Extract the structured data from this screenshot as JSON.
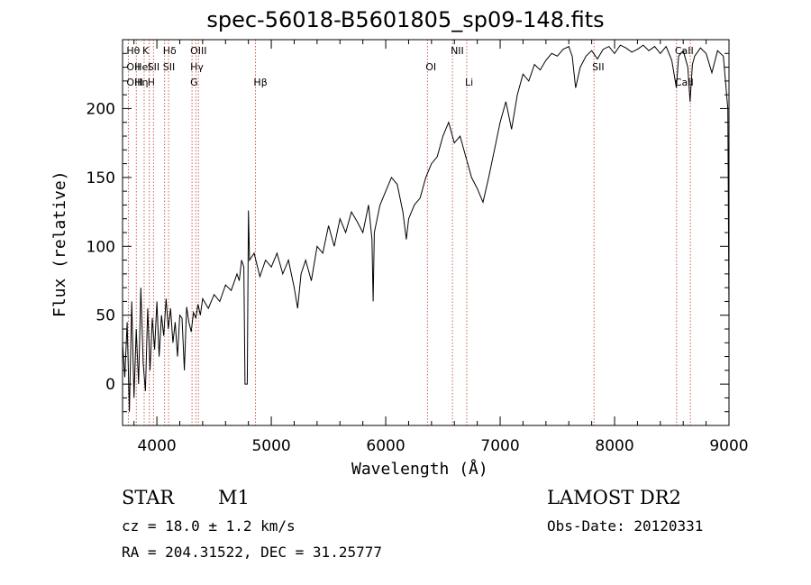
{
  "figure": {
    "title": "spec-56018-B5601805_sp09-148.fits",
    "object_class": "STAR",
    "subclass": "M1",
    "survey": "LAMOST DR2",
    "redshift_text": "cz = 18.0 ± 1.2 km/s",
    "obs_date": "Obs-Date: 20120331",
    "coords": "RA = 204.31522, DEC =  31.25777"
  },
  "chart_data": {
    "type": "line",
    "title": "spec-56018-B5601805_sp09-148.fits",
    "xlabel": "Wavelength (Å)",
    "ylabel": "Flux (relative)",
    "xlim": [
      3700,
      9000
    ],
    "ylim": [
      -30,
      250
    ],
    "grid": false,
    "xticks": [
      4000,
      5000,
      6000,
      7000,
      8000,
      9000
    ],
    "yticks": [
      0,
      50,
      100,
      150,
      200
    ],
    "series": [
      {
        "points": [
          [
            3700,
            30
          ],
          [
            3720,
            5
          ],
          [
            3740,
            45
          ],
          [
            3760,
            -20
          ],
          [
            3780,
            60
          ],
          [
            3800,
            -10
          ],
          [
            3820,
            40
          ],
          [
            3840,
            0
          ],
          [
            3860,
            70
          ],
          [
            3880,
            15
          ],
          [
            3900,
            -5
          ],
          [
            3920,
            55
          ],
          [
            3940,
            10
          ],
          [
            3960,
            48
          ],
          [
            3980,
            25
          ],
          [
            4000,
            60
          ],
          [
            4020,
            20
          ],
          [
            4040,
            50
          ],
          [
            4060,
            35
          ],
          [
            4080,
            62
          ],
          [
            4100,
            40
          ],
          [
            4120,
            55
          ],
          [
            4140,
            30
          ],
          [
            4160,
            45
          ],
          [
            4180,
            20
          ],
          [
            4200,
            50
          ],
          [
            4220,
            48
          ],
          [
            4240,
            10
          ],
          [
            4260,
            56
          ],
          [
            4280,
            45
          ],
          [
            4300,
            38
          ],
          [
            4320,
            52
          ],
          [
            4340,
            48
          ],
          [
            4360,
            58
          ],
          [
            4380,
            50
          ],
          [
            4400,
            62
          ],
          [
            4450,
            55
          ],
          [
            4500,
            65
          ],
          [
            4550,
            60
          ],
          [
            4600,
            72
          ],
          [
            4650,
            68
          ],
          [
            4700,
            80
          ],
          [
            4720,
            75
          ],
          [
            4740,
            90
          ],
          [
            4760,
            85
          ],
          [
            4770,
            0
          ],
          [
            4790,
            0
          ],
          [
            4800,
            126
          ],
          [
            4810,
            90
          ],
          [
            4850,
            95
          ],
          [
            4900,
            78
          ],
          [
            4950,
            90
          ],
          [
            5000,
            85
          ],
          [
            5050,
            95
          ],
          [
            5100,
            80
          ],
          [
            5150,
            90
          ],
          [
            5200,
            70
          ],
          [
            5230,
            55
          ],
          [
            5260,
            80
          ],
          [
            5300,
            90
          ],
          [
            5350,
            75
          ],
          [
            5400,
            100
          ],
          [
            5450,
            95
          ],
          [
            5500,
            115
          ],
          [
            5550,
            100
          ],
          [
            5600,
            120
          ],
          [
            5650,
            110
          ],
          [
            5700,
            125
          ],
          [
            5750,
            118
          ],
          [
            5800,
            110
          ],
          [
            5850,
            130
          ],
          [
            5880,
            105
          ],
          [
            5890,
            60
          ],
          [
            5900,
            110
          ],
          [
            5950,
            130
          ],
          [
            6000,
            140
          ],
          [
            6050,
            150
          ],
          [
            6100,
            145
          ],
          [
            6150,
            125
          ],
          [
            6180,
            105
          ],
          [
            6200,
            120
          ],
          [
            6250,
            130
          ],
          [
            6300,
            135
          ],
          [
            6350,
            150
          ],
          [
            6400,
            160
          ],
          [
            6450,
            165
          ],
          [
            6500,
            180
          ],
          [
            6550,
            190
          ],
          [
            6600,
            175
          ],
          [
            6650,
            180
          ],
          [
            6700,
            165
          ],
          [
            6750,
            150
          ],
          [
            6800,
            142
          ],
          [
            6850,
            132
          ],
          [
            6900,
            150
          ],
          [
            6950,
            170
          ],
          [
            7000,
            190
          ],
          [
            7050,
            205
          ],
          [
            7100,
            185
          ],
          [
            7150,
            210
          ],
          [
            7200,
            225
          ],
          [
            7250,
            220
          ],
          [
            7300,
            232
          ],
          [
            7350,
            228
          ],
          [
            7400,
            235
          ],
          [
            7450,
            240
          ],
          [
            7500,
            238
          ],
          [
            7550,
            243
          ],
          [
            7600,
            245
          ],
          [
            7630,
            238
          ],
          [
            7660,
            215
          ],
          [
            7700,
            230
          ],
          [
            7750,
            238
          ],
          [
            7800,
            242
          ],
          [
            7850,
            236
          ],
          [
            7900,
            243
          ],
          [
            7950,
            245
          ],
          [
            8000,
            240
          ],
          [
            8050,
            246
          ],
          [
            8100,
            244
          ],
          [
            8150,
            241
          ],
          [
            8200,
            243
          ],
          [
            8250,
            246
          ],
          [
            8300,
            242
          ],
          [
            8350,
            245
          ],
          [
            8400,
            240
          ],
          [
            8450,
            245
          ],
          [
            8500,
            235
          ],
          [
            8540,
            215
          ],
          [
            8560,
            238
          ],
          [
            8600,
            242
          ],
          [
            8640,
            230
          ],
          [
            8660,
            205
          ],
          [
            8680,
            232
          ],
          [
            8700,
            238
          ],
          [
            8750,
            244
          ],
          [
            8800,
            240
          ],
          [
            8850,
            226
          ],
          [
            8900,
            242
          ],
          [
            8950,
            238
          ],
          [
            8990,
            200
          ],
          [
            9000,
            50
          ]
        ]
      }
    ],
    "lines": [
      {
        "wl": 3750,
        "rows": [
          "Hθ",
          "OII",
          "OIII"
        ]
      },
      {
        "wl": 3820,
        "rows": [
          "",
          "HeI",
          "Hη"
        ]
      },
      {
        "wl": 3889,
        "rows": [
          "K",
          "",
          ""
        ]
      },
      {
        "wl": 3934,
        "rows": [
          "",
          "SII",
          "H"
        ]
      },
      {
        "wl": 3970,
        "rows": [
          "",
          "",
          ""
        ]
      },
      {
        "wl": 4068,
        "rows": [
          "Hδ",
          "SII",
          ""
        ]
      },
      {
        "wl": 4102,
        "rows": [
          "",
          "",
          ""
        ]
      },
      {
        "wl": 4307,
        "rows": [
          "OIII",
          "Hγ",
          "G"
        ]
      },
      {
        "wl": 4340,
        "rows": [
          "",
          "",
          ""
        ]
      },
      {
        "wl": 4363,
        "rows": [
          "",
          "",
          ""
        ]
      },
      {
        "wl": 4861,
        "rows": [
          "",
          "",
          "Hβ"
        ]
      },
      {
        "wl": 6364,
        "rows": [
          "",
          "OI",
          ""
        ]
      },
      {
        "wl": 6583,
        "rows": [
          "NII",
          "",
          ""
        ]
      },
      {
        "wl": 6708,
        "rows": [
          "",
          "",
          "Li"
        ]
      },
      {
        "wl": 7820,
        "rows": [
          "",
          "SII",
          ""
        ]
      },
      {
        "wl": 8542,
        "rows": [
          "CaII",
          "",
          "CaII"
        ]
      },
      {
        "wl": 8662,
        "rows": [
          "",
          "",
          ""
        ]
      }
    ]
  }
}
